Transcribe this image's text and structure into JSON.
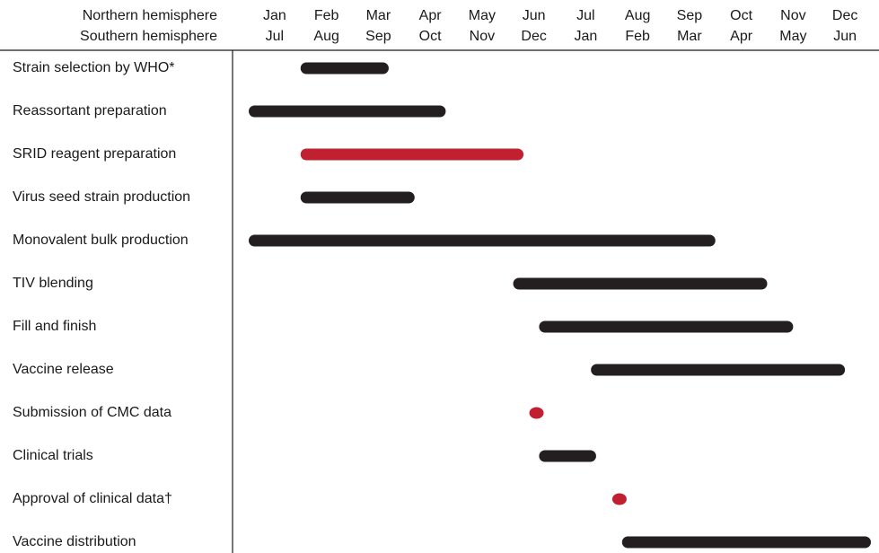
{
  "header": {
    "row1_label": "Northern hemisphere",
    "row2_label": "Southern hemisphere"
  },
  "colors": {
    "black_bar": "#231f20",
    "red_bar": "#c0202f",
    "grid": "#1a1a1a"
  },
  "chart_data": {
    "type": "gantt",
    "months_northern": [
      "Jan",
      "Feb",
      "Mar",
      "Apr",
      "May",
      "Jun",
      "Jul",
      "Aug",
      "Sep",
      "Oct",
      "Nov",
      "Dec"
    ],
    "months_southern": [
      "Jul",
      "Aug",
      "Sep",
      "Oct",
      "Nov",
      "Dec",
      "Jan",
      "Feb",
      "Mar",
      "Apr",
      "May",
      "Jun"
    ],
    "x_unit": "month (0 = start of Jan, Northern hemisphere)",
    "tasks": [
      {
        "name": "Strain selection by WHO*",
        "start": 1.0,
        "end": 2.7,
        "color": "black",
        "kind": "bar"
      },
      {
        "name": "Reassortant preparation",
        "start": 0.0,
        "end": 3.8,
        "color": "black",
        "kind": "bar"
      },
      {
        "name": "SRID reagent preparation",
        "start": 1.0,
        "end": 5.3,
        "color": "red",
        "kind": "bar"
      },
      {
        "name": "Virus seed strain production",
        "start": 1.0,
        "end": 3.2,
        "color": "black",
        "kind": "bar"
      },
      {
        "name": "Monovalent bulk production",
        "start": 0.0,
        "end": 9.0,
        "color": "black",
        "kind": "bar"
      },
      {
        "name": "TIV blending",
        "start": 5.1,
        "end": 10.0,
        "color": "black",
        "kind": "bar"
      },
      {
        "name": "Fill and finish",
        "start": 5.6,
        "end": 10.5,
        "color": "black",
        "kind": "bar"
      },
      {
        "name": "Vaccine release",
        "start": 6.6,
        "end": 11.5,
        "color": "black",
        "kind": "bar"
      },
      {
        "name": "Submission of CMC data",
        "start": 5.55,
        "end": 5.55,
        "color": "red",
        "kind": "point"
      },
      {
        "name": "Clinical trials",
        "start": 5.6,
        "end": 6.7,
        "color": "black",
        "kind": "bar"
      },
      {
        "name": "Approval of clinical data†",
        "start": 7.15,
        "end": 7.15,
        "color": "red",
        "kind": "point"
      },
      {
        "name": "Vaccine distribution",
        "start": 7.2,
        "end": 12.0,
        "color": "black",
        "kind": "bar"
      }
    ]
  }
}
